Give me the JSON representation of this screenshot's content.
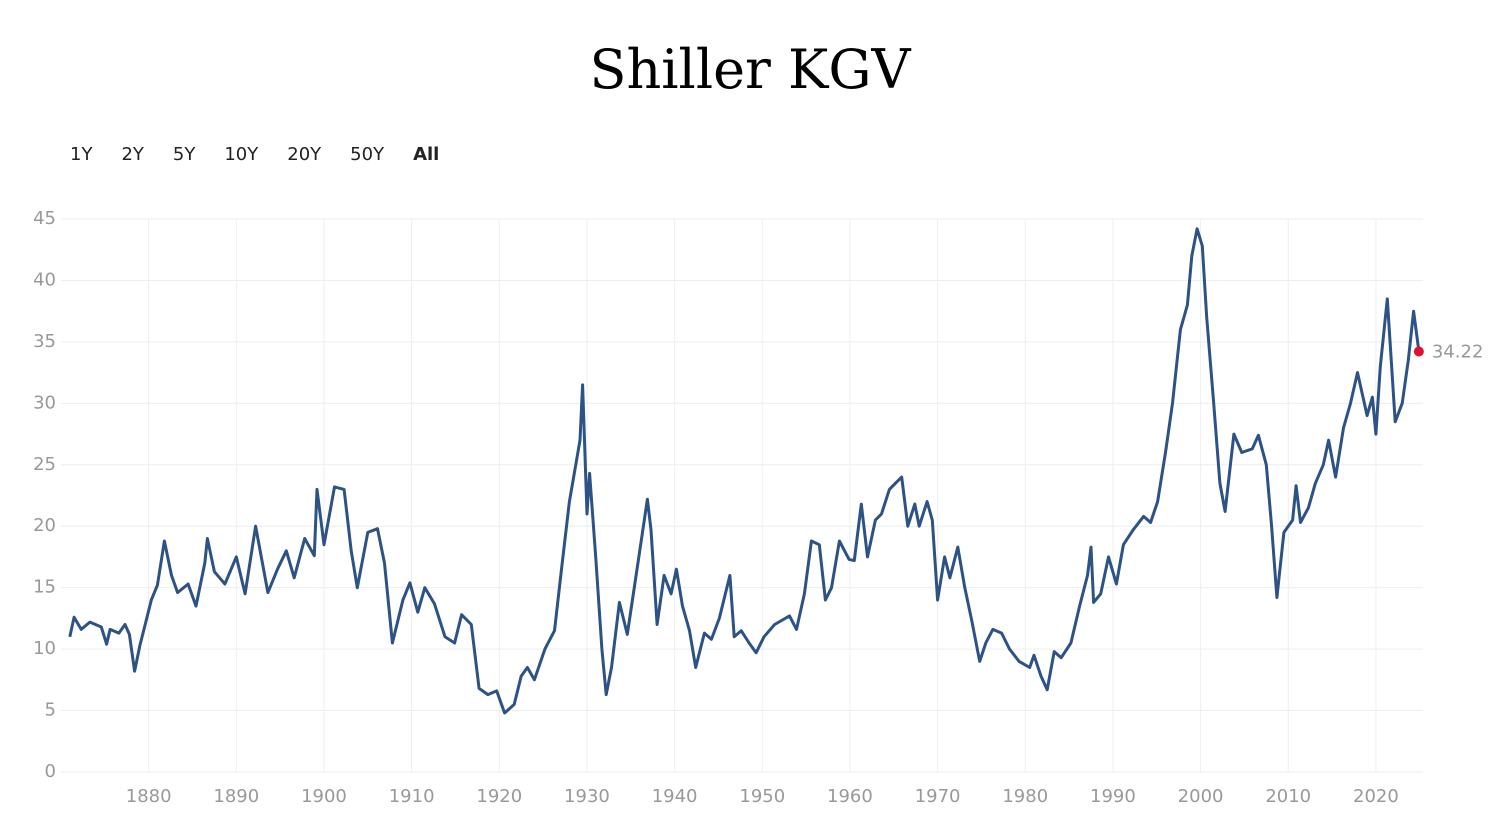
{
  "range_buttons": [
    "1Y",
    "2Y",
    "5Y",
    "10Y",
    "20Y",
    "50Y",
    "All"
  ],
  "selected_index": 6,
  "chart_data": {
    "type": "line",
    "title": "Shiller KGV",
    "x": [
      1871,
      1871.5,
      1872.3,
      1873.3,
      1874.6,
      1875.2,
      1875.6,
      1876.6,
      1877.3,
      1877.8,
      1878.4,
      1879,
      1879.6,
      1880.3,
      1881,
      1881.8,
      1882.6,
      1883.3,
      1884.5,
      1885.4,
      1886.4,
      1886.7,
      1887.5,
      1888.7,
      1890,
      1891,
      1892.2,
      1893.6,
      1894.7,
      1895.7,
      1896.6,
      1897.8,
      1898.9,
      1899.2,
      1900,
      1901.2,
      1902.3,
      1903.1,
      1903.8,
      1905,
      1906.1,
      1906.9,
      1907.8,
      1909,
      1909.8,
      1910.7,
      1911.5,
      1912.6,
      1913.8,
      1914.9,
      1915.7,
      1916.8,
      1917.7,
      1918.7,
      1919.7,
      1920.6,
      1921.7,
      1922.5,
      1923.2,
      1924,
      1925.2,
      1926.3,
      1927.1,
      1928,
      1929.2,
      1929.5,
      1930,
      1930.3,
      1931,
      1931.7,
      1932.2,
      1932.8,
      1933.7,
      1934.6,
      1935.6,
      1936.9,
      1937.3,
      1938,
      1938.8,
      1939.6,
      1940.2,
      1940.9,
      1941.7,
      1942.4,
      1943.4,
      1944.2,
      1945.1,
      1946.3,
      1946.8,
      1947.6,
      1948.5,
      1949.3,
      1950.2,
      1951.4,
      1953.1,
      1953.9,
      1954.8,
      1955.6,
      1956.5,
      1957.2,
      1957.9,
      1958.8,
      1959.9,
      1960.5,
      1961.3,
      1962,
      1962.9,
      1963.6,
      1964.5,
      1965.2,
      1965.9,
      1966.6,
      1967.4,
      1967.9,
      1968.8,
      1969.4,
      1970,
      1970.8,
      1971.4,
      1972.3,
      1973.1,
      1973.9,
      1974.8,
      1975.5,
      1976.3,
      1977.3,
      1978.2,
      1979.3,
      1980.5,
      1981,
      1981.8,
      1982.5,
      1983.3,
      1984.1,
      1985.2,
      1986.2,
      1987.1,
      1987.5,
      1987.8,
      1988.6,
      1989.5,
      1990.4,
      1991.2,
      1992.3,
      1993.5,
      1994.3,
      1995.1,
      1996,
      1996.8,
      1997.7,
      1998.5,
      1999,
      1999.6,
      2000.2,
      2000.7,
      2001.5,
      2002.2,
      2002.8,
      2003.8,
      2004.7,
      2005.9,
      2006.6,
      2007.5,
      2008.1,
      2008.7,
      2009.5,
      2010.5,
      2010.9,
      2011.4,
      2012.3,
      2013.1,
      2014,
      2014.6,
      2015.4,
      2016.3,
      2017.1,
      2017.9,
      2019,
      2019.6,
      2020,
      2020.5,
      2021.3,
      2022.2,
      2023,
      2023.7,
      2024.3,
      2024.9
    ],
    "series": [
      {
        "name": "Shiller KGV",
        "color": "#2c5286",
        "values": [
          11,
          12.6,
          11.6,
          12.2,
          11.8,
          10.4,
          11.6,
          11.3,
          12,
          11.2,
          8.2,
          10.3,
          12,
          14,
          15.2,
          18.8,
          16,
          14.6,
          15.3,
          13.5,
          17,
          19,
          16.3,
          15.3,
          17.5,
          14.5,
          20,
          14.6,
          16.5,
          18,
          15.8,
          19,
          17.6,
          23,
          18.5,
          23.2,
          23,
          18,
          15,
          19.5,
          19.8,
          17,
          10.5,
          14,
          15.4,
          13,
          15,
          13.7,
          11,
          10.5,
          12.8,
          12,
          6.8,
          6.3,
          6.6,
          4.8,
          5.5,
          7.8,
          8.5,
          7.5,
          10,
          11.5,
          16.5,
          22,
          27,
          31.5,
          21,
          24.3,
          17.5,
          10,
          6.3,
          8.5,
          13.8,
          11.2,
          16,
          22.2,
          19.7,
          12,
          16,
          14.5,
          16.5,
          13.5,
          11.5,
          8.5,
          11.3,
          10.8,
          12.5,
          16,
          11,
          11.5,
          10.5,
          9.7,
          11,
          12,
          12.7,
          11.6,
          14.5,
          18.8,
          18.5,
          14,
          15,
          18.8,
          17.3,
          17.2,
          21.8,
          17.5,
          20.5,
          21,
          23,
          23.5,
          24,
          20,
          21.8,
          20,
          22,
          20.5,
          14,
          17.5,
          15.8,
          18.3,
          15,
          12.3,
          9,
          10.5,
          11.6,
          11.3,
          10,
          9,
          8.5,
          9.5,
          7.8,
          6.7,
          9.8,
          9.3,
          10.5,
          13.5,
          16,
          18.3,
          13.8,
          14.5,
          17.5,
          15.3,
          18.5,
          19.7,
          20.8,
          20.3,
          22,
          26,
          30,
          36,
          38,
          42,
          44.2,
          42.8,
          37,
          30,
          23.5,
          21.2,
          27.5,
          26,
          26.3,
          27.4,
          25,
          20,
          14.2,
          19.5,
          20.5,
          23.3,
          20.3,
          21.5,
          23.5,
          25,
          27,
          24,
          28,
          30,
          32.5,
          29,
          30.5,
          27.5,
          33,
          38.5,
          28.5,
          30,
          33.5,
          37.5,
          34.22
        ]
      }
    ],
    "end_color": "#e0102e",
    "xlim": [
      1870,
      2025.6
    ],
    "xticks": [
      1880,
      1890,
      1900,
      1910,
      1920,
      1930,
      1940,
      1950,
      1960,
      1970,
      1980,
      1990,
      2000,
      2010,
      2020
    ],
    "ylim": [
      0,
      45
    ],
    "yticks": [
      0,
      5,
      10,
      15,
      20,
      25,
      30,
      35,
      40,
      45
    ],
    "grid": true
  }
}
